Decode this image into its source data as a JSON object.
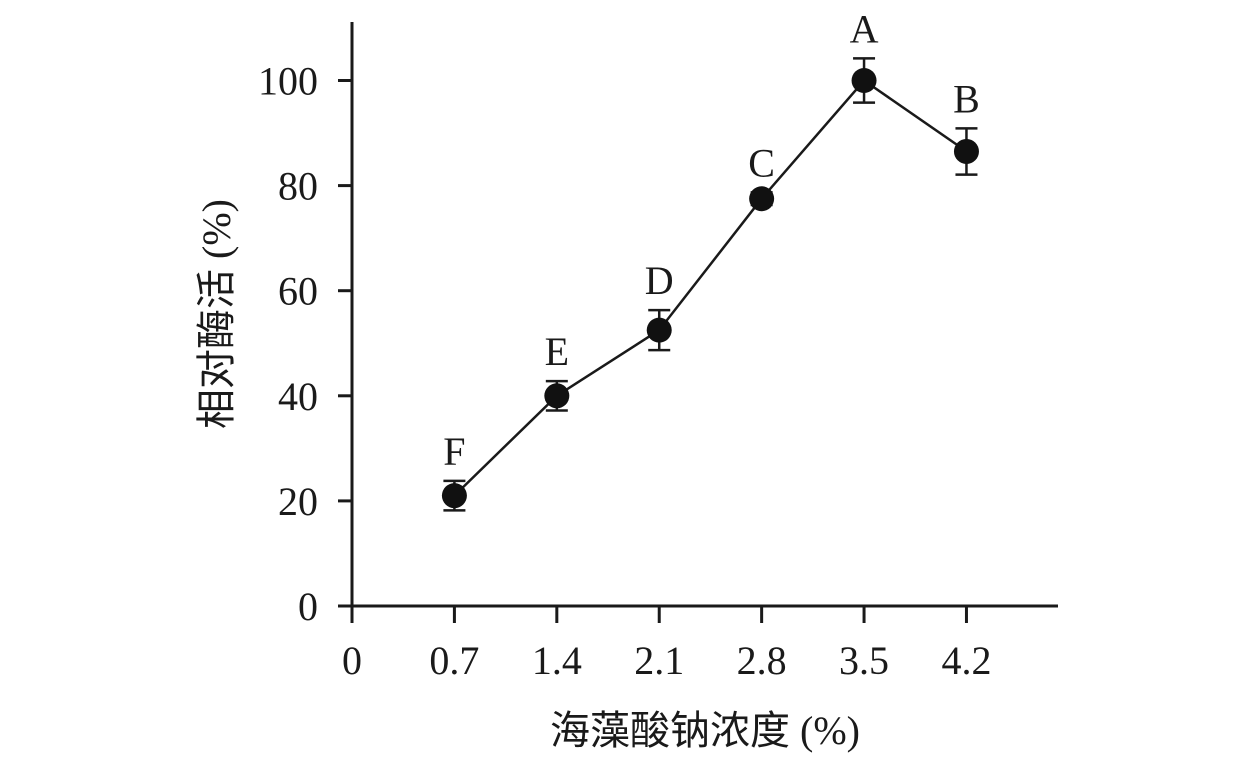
{
  "chart_data": {
    "type": "line",
    "title": "",
    "xlabel": "海藻酸钠浓度 (%)",
    "ylabel": "相对酶活 (%)",
    "x_ticks": [
      "0",
      "0.7",
      "1.4",
      "2.1",
      "2.8",
      "3.5",
      "4.2"
    ],
    "y_ticks": [
      "0",
      "20",
      "40",
      "60",
      "80",
      "100"
    ],
    "xlim": [
      0,
      4.9
    ],
    "ylim": [
      0,
      110
    ],
    "grid": false,
    "series": [
      {
        "x": [
          0.7,
          1.4,
          2.1,
          2.8,
          3.5,
          4.2
        ],
        "y": [
          21,
          40,
          52.5,
          77.5,
          100,
          86.5
        ],
        "error": [
          2.8,
          2.8,
          3.8,
          1.2,
          4.2,
          4.4
        ],
        "labels": [
          "F",
          "E",
          "D",
          "C",
          "A",
          "B"
        ]
      }
    ]
  }
}
